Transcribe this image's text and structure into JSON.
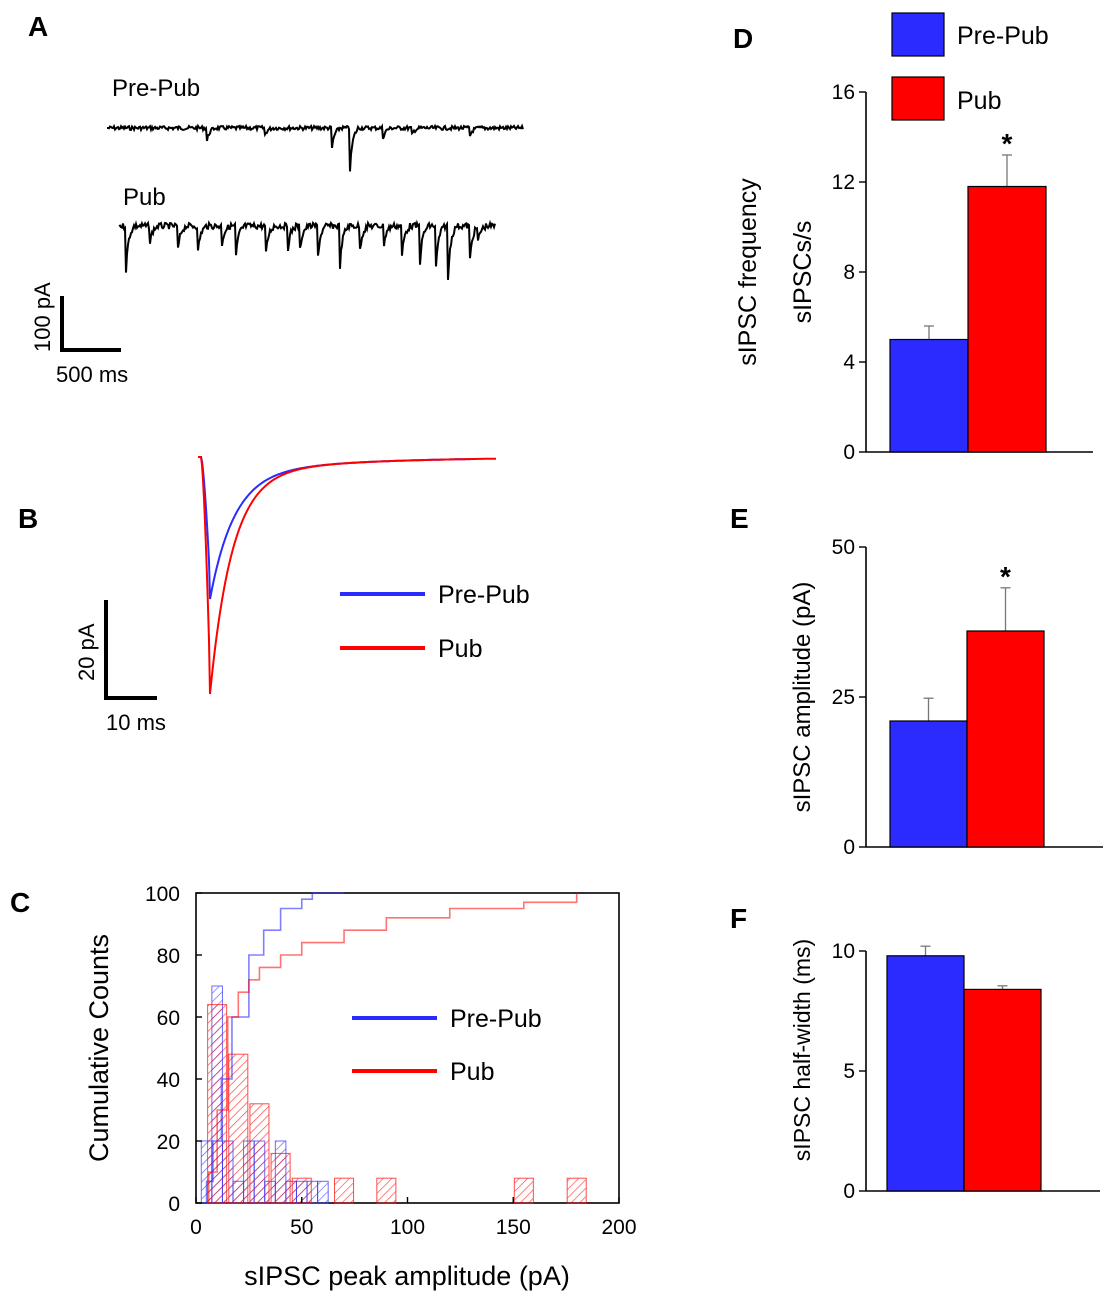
{
  "colors": {
    "pre_pub": "#2b2bff",
    "pub": "#ff0000",
    "black": "#000000"
  },
  "panels": {
    "a": "A",
    "b": "B",
    "c": "C",
    "d": "D",
    "e": "E",
    "f": "F"
  },
  "trace_labels": {
    "pre_pub": "Pre-Pub",
    "pub": "Pub"
  },
  "legend": {
    "pre_pub": "Pre-Pub",
    "pub": "Pub"
  },
  "scale_a": {
    "y": "100 pA",
    "x": "500 ms"
  },
  "scale_b": {
    "y": "20 pA",
    "x": "10 ms"
  },
  "chart_data": [
    {
      "id": "C",
      "type": "histogram+cumulative",
      "xlabel": "sIPSC peak amplitude (pA)",
      "ylabel": "Cumulative Counts",
      "xlim": [
        0,
        200
      ],
      "ylim": [
        0,
        100
      ],
      "xticks": [
        "0",
        "50",
        "100",
        "150",
        "200"
      ],
      "yticks": [
        "0",
        "20",
        "40",
        "60",
        "80",
        "100"
      ],
      "series": [
        {
          "name": "Pre-Pub",
          "histogram": [
            [
              5,
              20
            ],
            [
              10,
              70
            ],
            [
              15,
              20
            ],
            [
              20,
              7
            ],
            [
              25,
              20
            ],
            [
              30,
              20
            ],
            [
              35,
              7
            ],
            [
              40,
              20
            ],
            [
              45,
              7
            ],
            [
              50,
              7
            ],
            [
              55,
              7
            ],
            [
              60,
              7
            ]
          ],
          "cumulative": [
            [
              5,
              7
            ],
            [
              8,
              20
            ],
            [
              12,
              40
            ],
            [
              17,
              60
            ],
            [
              25,
              80
            ],
            [
              32,
              88
            ],
            [
              40,
              95
            ],
            [
              50,
              98
            ],
            [
              55,
              100
            ],
            [
              70,
              100
            ]
          ]
        },
        {
          "name": "Pub",
          "histogram": [
            [
              10,
              64
            ],
            [
              20,
              48
            ],
            [
              30,
              32
            ],
            [
              40,
              16
            ],
            [
              50,
              8
            ],
            [
              70,
              8
            ],
            [
              90,
              8
            ],
            [
              155,
              8
            ],
            [
              180,
              8
            ]
          ],
          "cumulative": [
            [
              6,
              10
            ],
            [
              10,
              30
            ],
            [
              15,
              60
            ],
            [
              20,
              68
            ],
            [
              25,
              72
            ],
            [
              30,
              76
            ],
            [
              40,
              80
            ],
            [
              50,
              84
            ],
            [
              70,
              88
            ],
            [
              90,
              92
            ],
            [
              120,
              95
            ],
            [
              155,
              97
            ],
            [
              180,
              100
            ]
          ]
        }
      ]
    },
    {
      "id": "D",
      "type": "bar",
      "categories": [
        "Pre-Pub",
        "Pub"
      ],
      "values": [
        5.0,
        11.8
      ],
      "errors": [
        0.6,
        1.4
      ],
      "ylabel_lines": [
        "sIPSC frequency",
        "sIPSCs/s"
      ],
      "ylim": [
        0,
        16
      ],
      "yticks": [
        "0",
        "4",
        "8",
        "12",
        "16"
      ],
      "significance": "*"
    },
    {
      "id": "E",
      "type": "bar",
      "categories": [
        "Pre-Pub",
        "Pub"
      ],
      "values": [
        21,
        36
      ],
      "errors": [
        3.8,
        7.2
      ],
      "ylabel": "sIPSC amplitude (pA)",
      "ylim": [
        0,
        50
      ],
      "yticks": [
        "0",
        "25",
        "50"
      ],
      "significance": "*"
    },
    {
      "id": "F",
      "type": "bar",
      "categories": [
        "Pre-Pub",
        "Pub"
      ],
      "values": [
        9.8,
        8.4
      ],
      "errors": [
        0.4,
        0.15
      ],
      "ylabel": "sIPSC half-width (ms)",
      "ylim": [
        0,
        10
      ],
      "yticks": [
        "0",
        "5",
        "10"
      ]
    }
  ]
}
